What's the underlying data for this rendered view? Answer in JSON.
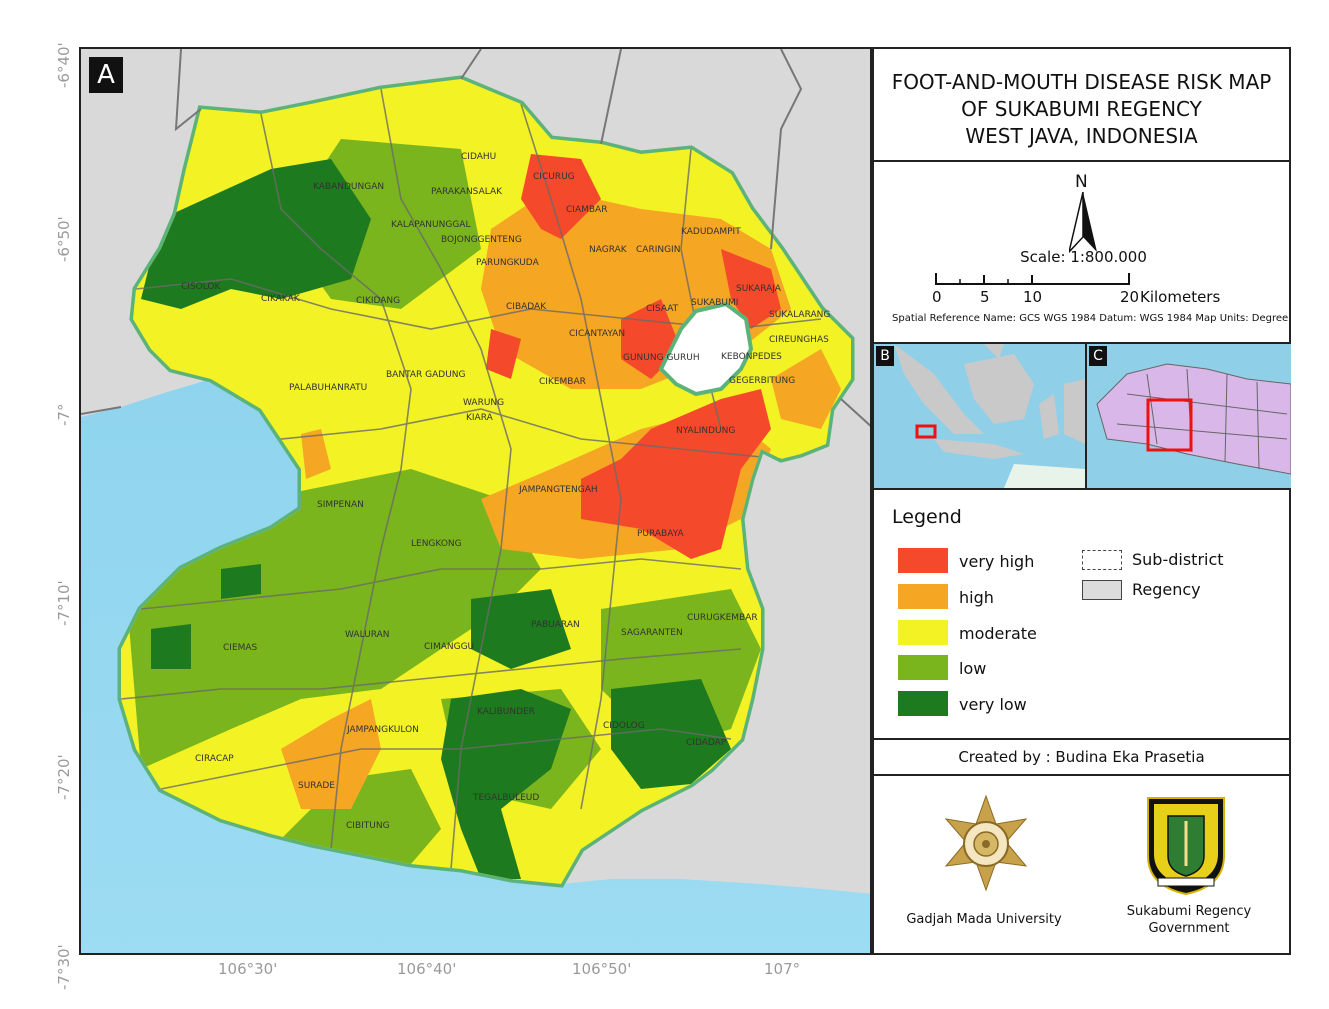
{
  "panel_label": "A",
  "title": {
    "line1": "FOOT-AND-MOUTH DISEASE RISK MAP",
    "line2": "OF SUKABUMI REGENCY",
    "line3": "WEST JAVA, INDONESIA"
  },
  "north_arrow": "N",
  "scale": {
    "label": "Scale: 1:800.000",
    "ticks": [
      "0",
      "5",
      "10",
      "20"
    ],
    "unit": "Kilometers",
    "spatial_reference": "Spatial Reference Name: GCS WGS 1984 Datum: WGS 1984 Map Units: Degree"
  },
  "insets": {
    "b_label": "B",
    "c_label": "C"
  },
  "legend": {
    "title": "Legend",
    "classes": [
      {
        "label": "very high",
        "color": "#f44a2b"
      },
      {
        "label": "high",
        "color": "#f5a623"
      },
      {
        "label": "moderate",
        "color": "#f2f225"
      },
      {
        "label": "low",
        "color": "#7ab51d"
      },
      {
        "label": "very low",
        "color": "#1e7a1e"
      }
    ],
    "subdistrict": "Sub-district",
    "regency": "Regency"
  },
  "credit": "Created by : Budina Eka Prasetia",
  "logos": {
    "ugm": "Gadjah Mada University",
    "sukabumi_line1": "Sukabumi Regency",
    "sukabumi_line2": "Government"
  },
  "latitude_labels": [
    "-6°40'",
    "-6°50'",
    "-7°",
    "-7°10'",
    "-7°20'",
    "-7°30'"
  ],
  "longitude_labels": [
    "106°30'",
    "106°40'",
    "106°50'",
    "107°"
  ],
  "districts": [
    "CIDAHU",
    "CICURUG",
    "KABANDUNGAN",
    "PARAKANSALAK",
    "CIAMBAR",
    "KALAPANUNGGAL",
    "BOJONGGENTENG",
    "KADUDAMPIT",
    "NAGRAK",
    "CARINGIN",
    "PARUNGKUDA",
    "CISOLOK",
    "CIKAKAK",
    "CIKIDANG",
    "CIBADAK",
    "SUKABUMI",
    "SUKARAJA",
    "CISAAT",
    "SUKALARANG",
    "CICANTAYAN",
    "CIREUNGHAS",
    "GUNUNG GURUH",
    "KEBONPEDES",
    "PALABUHANRATU",
    "BANTAR GADUNG",
    "CIKEMBAR",
    "GEGERBITUNG",
    "WARUNG",
    "KIARA",
    "NYALINDUNG",
    "JAMPANGTENGAH",
    "SIMPENAN",
    "PURABAYA",
    "LENGKONG",
    "CURUGKEMBAR",
    "PABUARAN",
    "SAGARANTEN",
    "CIEMAS",
    "WALURAN",
    "CIMANGGU",
    "KALIBUNDER",
    "CIDOLOG",
    "CIDADAP",
    "JAMPANGKULON",
    "CIRACAP",
    "SURADE",
    "TEGALBULEUD",
    "CIBITUNG"
  ]
}
